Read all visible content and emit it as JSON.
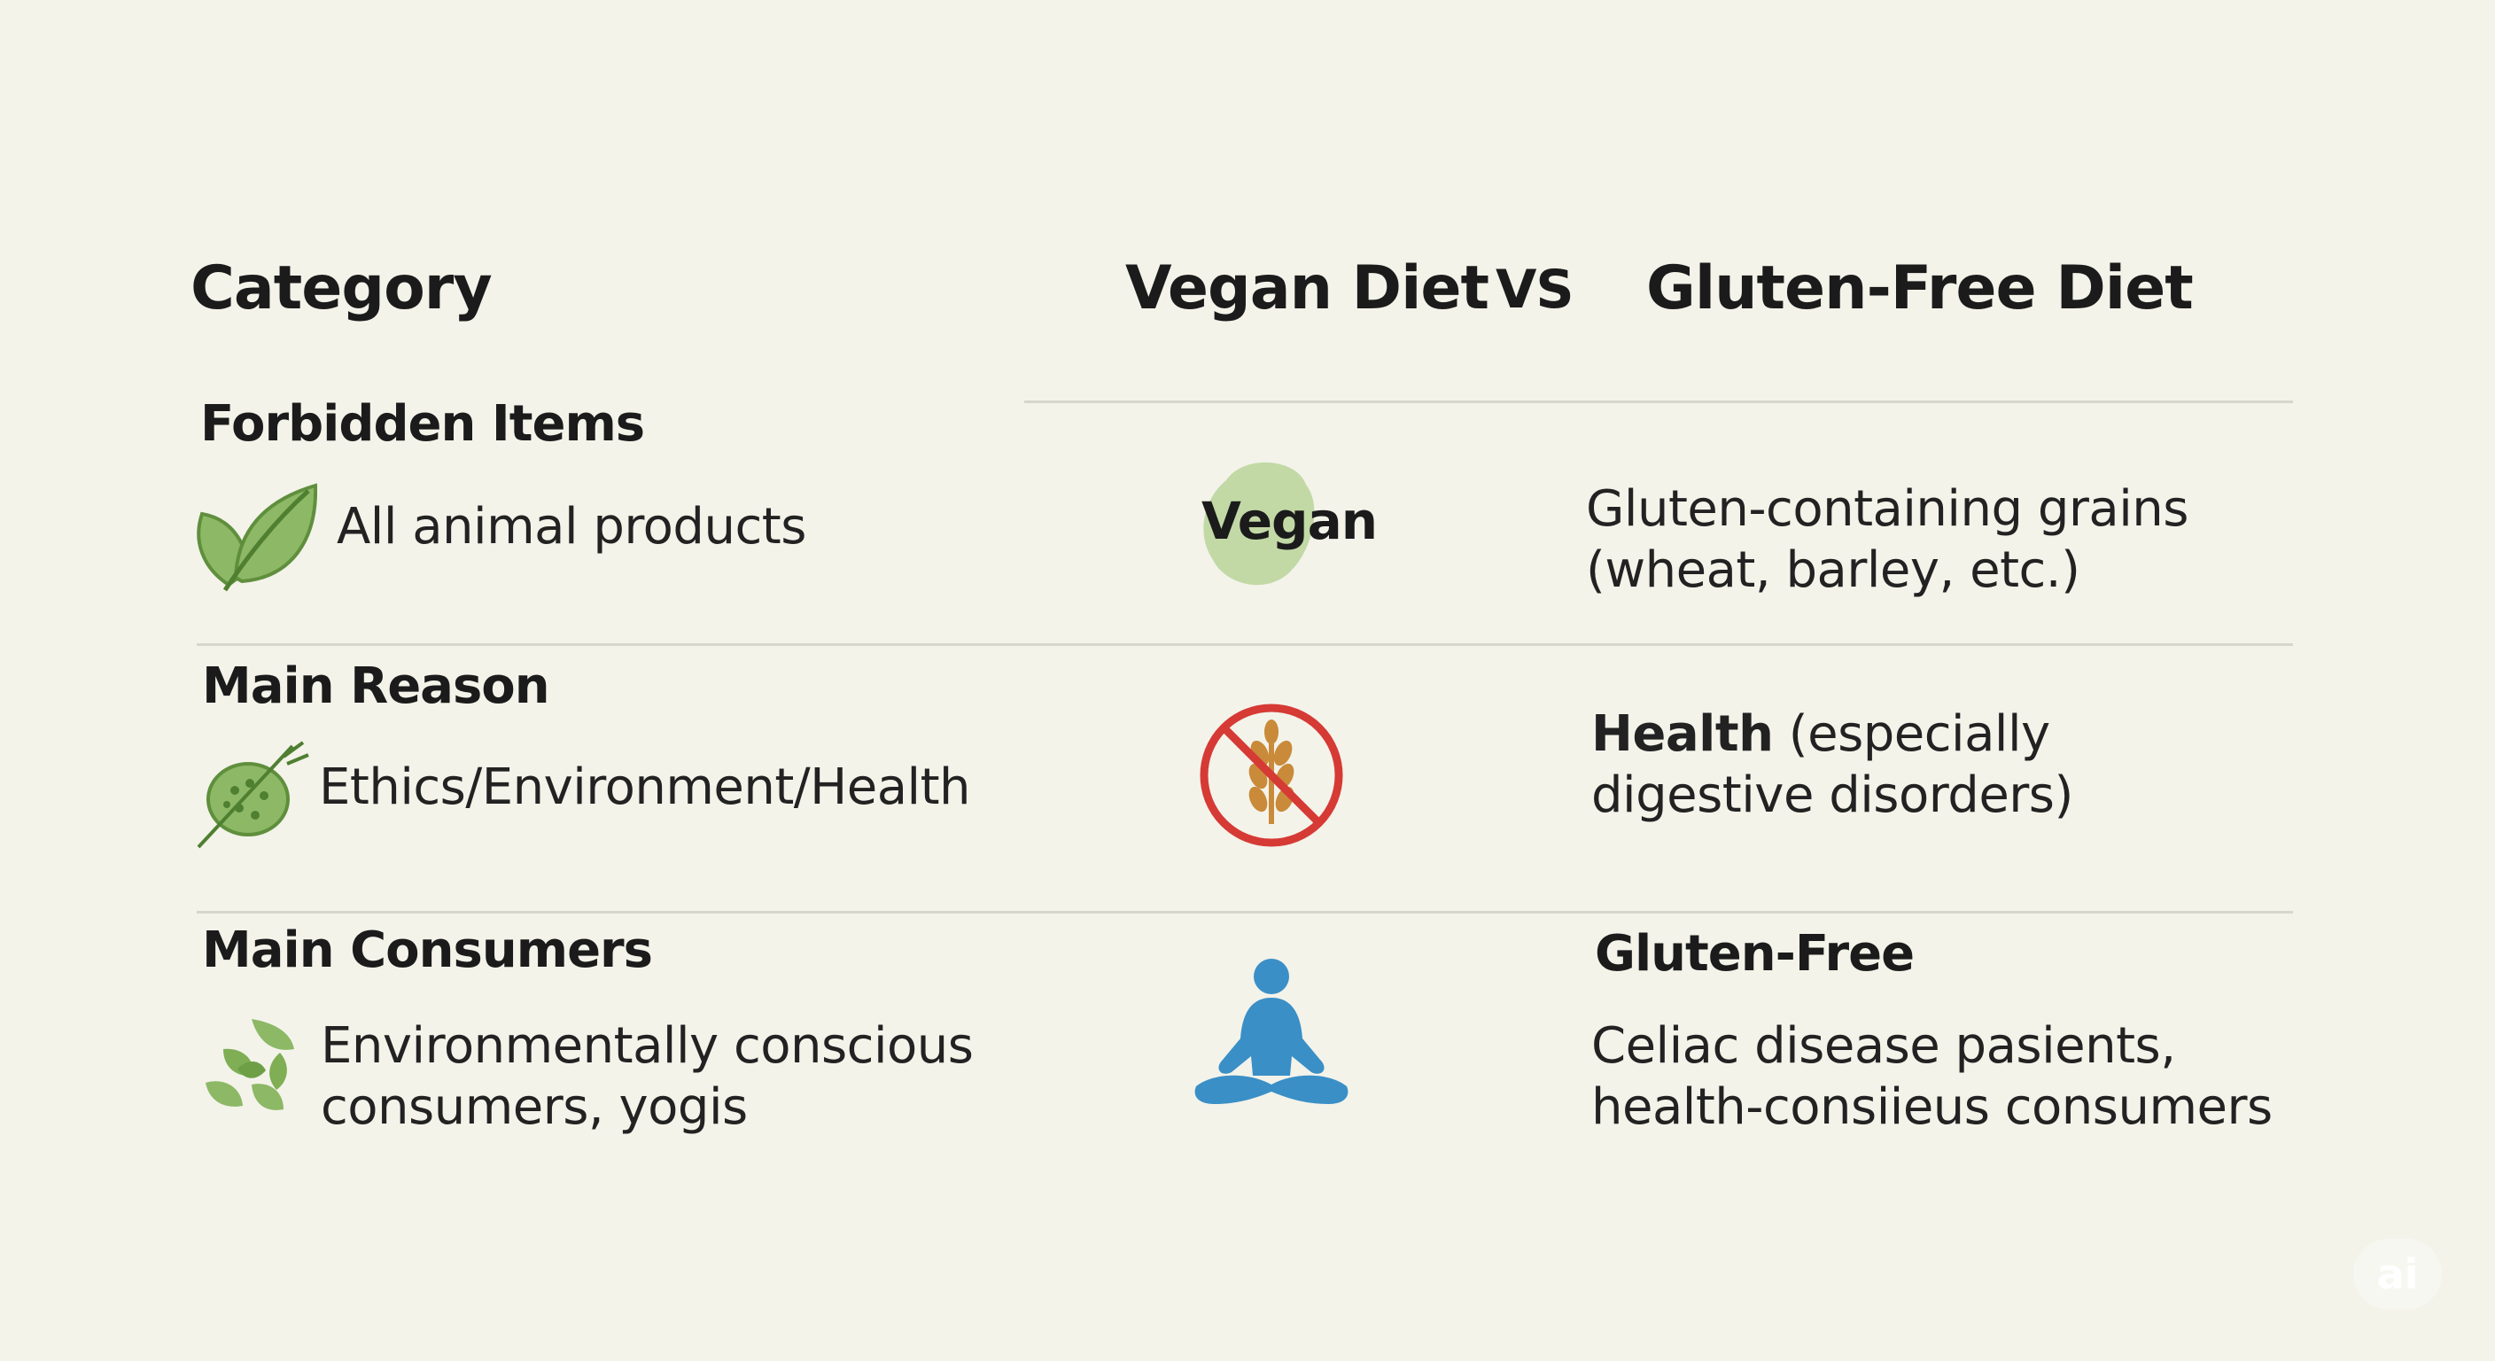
{
  "header": {
    "category": "Category",
    "vegan": "Vegan Diet",
    "vs": "VS",
    "gluten_free": "Gluten-Free Diet"
  },
  "rows": [
    {
      "title": "Forbidden Items",
      "category_icon": "leaf-icon",
      "category_text": [
        "All animal products"
      ],
      "center_icon": "vegan-badge-icon",
      "center_label": "Vegan",
      "right_lines": [
        "Gluten-containing grains",
        "(wheat, barley, etc.)"
      ]
    },
    {
      "title": "Main Reason",
      "category_icon": "seed-pod-icon",
      "category_text": [
        "Ethics/Environment/Health"
      ],
      "center_icon": "no-wheat-icon",
      "right_bold": "Health",
      "right_lines": [
        " (especially",
        "digestive disorders)"
      ]
    },
    {
      "title": "Main Consumers",
      "category_icon": "leaves-cluster-icon",
      "category_text": [
        "Environmentally conscious",
        "consumers, yogis"
      ],
      "center_icon": "meditation-person-icon",
      "right_heading": "Gluten-Free",
      "right_lines": [
        "Celiac disease pasients,",
        "health-consiieus consumers"
      ]
    }
  ],
  "colors": {
    "background": "#f3f3ea",
    "leaf_green": "#7fae54",
    "badge_green": "#b8d49a",
    "no_sign_red": "#d63a35",
    "wheat_orange": "#c98a3a",
    "meditation_blue": "#3a8fc6"
  },
  "watermark": "ai"
}
